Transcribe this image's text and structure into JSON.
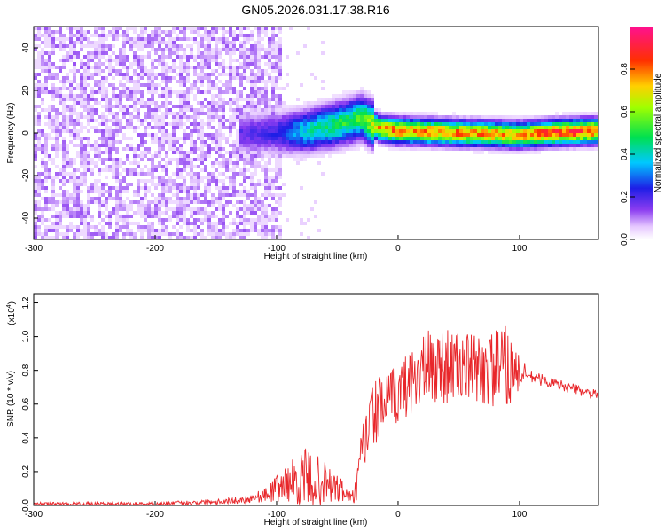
{
  "title": "GN05.2026.031.17.38.R16",
  "colors": {
    "snr_line": "#e8262a",
    "ridge": "#ff2a55",
    "frame": "#000000"
  },
  "chart_data": [
    {
      "type": "heatmap",
      "xlabel": "Height of straight line (km)",
      "ylabel": "Frequency (Hz)",
      "xlim": [
        -300,
        165
      ],
      "ylim": [
        -50,
        50
      ],
      "xticks": [
        -300,
        -200,
        -100,
        0,
        100
      ],
      "xtick_labels": [
        "-300",
        "-200",
        "-100",
        "0",
        "100"
      ],
      "yticks": [
        -40,
        -20,
        0,
        20,
        40
      ],
      "ytick_labels": [
        "-40",
        "-20",
        "0",
        "20",
        "40"
      ],
      "colorbar": {
        "label": "Normalized spectral amplitude",
        "range": [
          0,
          1
        ],
        "ticks": [
          0,
          0.2,
          0.4,
          0.6,
          0.8
        ],
        "tick_labels": [
          "0.0",
          "0.2",
          "0.4",
          "0.6",
          "0.8"
        ],
        "colormap": "rainbow (white → violet → blue → cyan → green → yellow → red → magenta)"
      },
      "features": {
        "noise_region_height_km": [
          -300,
          -95
        ],
        "noise_amplitude": 0.15,
        "signal_ridge": {
          "height_km": [
            -125,
            -100,
            -75,
            -50,
            -30,
            -15,
            0,
            50,
            100,
            125,
            165
          ],
          "frequency_hz": [
            0,
            0,
            1,
            4,
            7,
            2,
            1,
            0,
            -1,
            0,
            1
          ],
          "amplitude": [
            0.2,
            0.25,
            0.45,
            0.55,
            0.6,
            0.85,
            0.9,
            0.88,
            0.85,
            0.95,
            0.95
          ]
        }
      }
    },
    {
      "type": "line",
      "xlabel": "Height of straight line (km)",
      "ylabel": "SNR (10 * v/v)",
      "y_multiplier_label": "(x10",
      "y_multiplier_exp": "4",
      "y_multiplier_close": ")",
      "xlim": [
        -300,
        165
      ],
      "ylim": [
        0,
        1.25
      ],
      "xticks": [
        -300,
        -200,
        -100,
        0,
        100
      ],
      "xtick_labels": [
        "-300",
        "-200",
        "-100",
        "0",
        "100"
      ],
      "yticks": [
        0,
        0.2,
        0.4,
        0.6,
        0.8,
        1.0,
        1.2
      ],
      "ytick_labels": [
        "0.0",
        "0.2",
        "0.4",
        "0.6",
        "0.8",
        "1.0",
        "1.2"
      ],
      "grid": false,
      "envelope": {
        "x": [
          -300,
          -250,
          -200,
          -160,
          -130,
          -110,
          -100,
          -90,
          -75,
          -60,
          -45,
          -38,
          -33,
          -30,
          -25,
          -20,
          -10,
          0,
          10,
          20,
          35,
          50,
          70,
          90,
          100,
          110,
          130,
          150,
          165
        ],
        "mean": [
          0.01,
          0.01,
          0.01,
          0.02,
          0.03,
          0.06,
          0.1,
          0.14,
          0.16,
          0.13,
          0.08,
          0.04,
          0.12,
          0.3,
          0.45,
          0.55,
          0.6,
          0.66,
          0.74,
          0.8,
          0.83,
          0.82,
          0.8,
          0.82,
          0.78,
          0.76,
          0.72,
          0.68,
          0.65
        ],
        "spread": [
          0.01,
          0.01,
          0.01,
          0.015,
          0.02,
          0.04,
          0.08,
          0.12,
          0.18,
          0.13,
          0.07,
          0.03,
          0.12,
          0.18,
          0.2,
          0.2,
          0.18,
          0.18,
          0.2,
          0.22,
          0.24,
          0.2,
          0.22,
          0.25,
          0.1,
          0.04,
          0.03,
          0.03,
          0.03
        ]
      }
    }
  ]
}
